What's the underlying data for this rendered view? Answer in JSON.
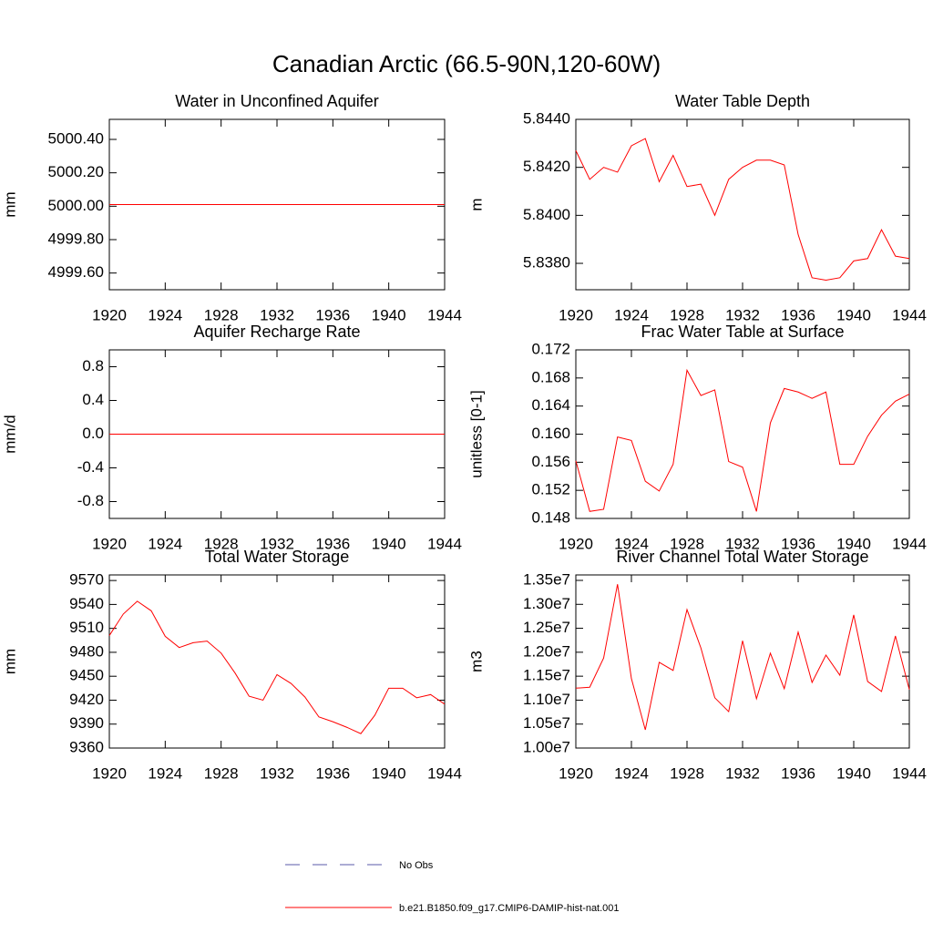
{
  "title": "Canadian Arctic (66.5-90N,120-60W)",
  "legend": [
    {
      "name": "No Obs",
      "color": "#5a5aa8",
      "dash": true
    },
    {
      "name": "b.e21.B1850.f09_g17.CMIP6-DAMIP-hist-nat.001",
      "color": "#ff0000",
      "dash": false
    }
  ],
  "chart_data": [
    {
      "type": "line",
      "title": "Water in Unconfined Aquifer",
      "y_label": "mm",
      "x": [
        1920,
        1921,
        1922,
        1923,
        1924,
        1925,
        1926,
        1927,
        1928,
        1929,
        1930,
        1931,
        1932,
        1933,
        1934,
        1935,
        1936,
        1937,
        1938,
        1939,
        1940,
        1941,
        1942,
        1943,
        1944
      ],
      "xlim": [
        1920,
        1944
      ],
      "xticks": [
        1920,
        1924,
        1928,
        1932,
        1936,
        1940,
        1944
      ],
      "ylim": [
        4999.5,
        5000.52
      ],
      "yticks": [
        {
          "value": 4999.6,
          "label": "4999.60"
        },
        {
          "value": 4999.8,
          "label": "4999.80"
        },
        {
          "value": 5000,
          "label": "5000.00"
        },
        {
          "value": 5000.2,
          "label": "5000.20"
        },
        {
          "value": 5000.4,
          "label": "5000.40"
        }
      ],
      "series": [
        {
          "color": "#ff0000",
          "values": [
            5000.01,
            5000.01,
            5000.01,
            5000.01,
            5000.01,
            5000.01,
            5000.01,
            5000.01,
            5000.01,
            5000.01,
            5000.01,
            5000.01,
            5000.01,
            5000.01,
            5000.01,
            5000.01,
            5000.01,
            5000.01,
            5000.01,
            5000.01,
            5000.01,
            5000.01,
            5000.01,
            5000.01,
            5000.01
          ]
        }
      ]
    },
    {
      "type": "line",
      "title": "Water Table Depth",
      "y_label": "m",
      "x": [
        1920,
        1921,
        1922,
        1923,
        1924,
        1925,
        1926,
        1927,
        1928,
        1929,
        1930,
        1931,
        1932,
        1933,
        1934,
        1935,
        1936,
        1937,
        1938,
        1939,
        1940,
        1941,
        1942,
        1943,
        1944
      ],
      "xlim": [
        1920,
        1944
      ],
      "xticks": [
        1920,
        1924,
        1928,
        1932,
        1936,
        1940,
        1944
      ],
      "ylim": [
        5.8369,
        5.844
      ],
      "yticks": [
        {
          "value": 5.838,
          "label": "5.8380"
        },
        {
          "value": 5.84,
          "label": "5.8400"
        },
        {
          "value": 5.842,
          "label": "5.8420"
        },
        {
          "value": 5.844,
          "label": "5.8440"
        }
      ],
      "series": [
        {
          "color": "#ff0000",
          "values": [
            5.8427,
            5.8415,
            5.842,
            5.8418,
            5.8429,
            5.8432,
            5.8414,
            5.8425,
            5.8412,
            5.8413,
            5.84,
            5.8415,
            5.842,
            5.8423,
            5.8423,
            5.8421,
            5.8392,
            5.8374,
            5.8373,
            5.8374,
            5.8381,
            5.8382,
            5.8394,
            5.8383,
            5.8382
          ]
        }
      ]
    },
    {
      "type": "line",
      "title": "Aquifer Recharge Rate",
      "y_label": "mm/d",
      "x": [
        1920,
        1921,
        1922,
        1923,
        1924,
        1925,
        1926,
        1927,
        1928,
        1929,
        1930,
        1931,
        1932,
        1933,
        1934,
        1935,
        1936,
        1937,
        1938,
        1939,
        1940,
        1941,
        1942,
        1943,
        1944
      ],
      "xlim": [
        1920,
        1944
      ],
      "xticks": [
        1920,
        1924,
        1928,
        1932,
        1936,
        1940,
        1944
      ],
      "ylim": [
        -1,
        1
      ],
      "yticks": [
        -0.8,
        -0.4,
        {
          "value": 0,
          "label": "0.0"
        },
        0.4,
        0.8
      ],
      "series": [
        {
          "color": "#ff0000",
          "values": [
            0,
            0,
            0,
            0,
            0,
            0,
            0,
            0,
            0,
            0,
            0,
            0,
            0,
            0,
            0,
            0,
            0,
            0,
            0,
            0,
            0,
            0,
            0,
            0,
            0
          ]
        }
      ]
    },
    {
      "type": "line",
      "title": "Frac Water Table at Surface",
      "y_label": "unitless [0-1]",
      "x": [
        1920,
        1921,
        1922,
        1923,
        1924,
        1925,
        1926,
        1927,
        1928,
        1929,
        1930,
        1931,
        1932,
        1933,
        1934,
        1935,
        1936,
        1937,
        1938,
        1939,
        1940,
        1941,
        1942,
        1943,
        1944
      ],
      "xlim": [
        1920,
        1944
      ],
      "xticks": [
        1920,
        1924,
        1928,
        1932,
        1936,
        1940,
        1944
      ],
      "ylim": [
        0.148,
        0.172
      ],
      "yticks": [
        0.148,
        0.152,
        0.156,
        {
          "value": 0.16,
          "label": "0.160"
        },
        0.164,
        0.168,
        0.172
      ],
      "series": [
        {
          "color": "#ff0000",
          "values": [
            0.1562,
            0.149,
            0.1493,
            0.1596,
            0.1591,
            0.1533,
            0.1519,
            0.1557,
            0.1691,
            0.1655,
            0.1663,
            0.1561,
            0.1553,
            0.149,
            0.1616,
            0.1665,
            0.166,
            0.1651,
            0.166,
            0.1557,
            0.1557,
            0.1597,
            0.1627,
            0.1647,
            0.1657
          ]
        }
      ]
    },
    {
      "type": "line",
      "title": "Total Water Storage",
      "y_label": "mm",
      "x": [
        1920,
        1921,
        1922,
        1923,
        1924,
        1925,
        1926,
        1927,
        1928,
        1929,
        1930,
        1931,
        1932,
        1933,
        1934,
        1935,
        1936,
        1937,
        1938,
        1939,
        1940,
        1941,
        1942,
        1943,
        1944
      ],
      "xlim": [
        1920,
        1944
      ],
      "xticks": [
        1920,
        1924,
        1928,
        1932,
        1936,
        1940,
        1944
      ],
      "ylim": [
        9360,
        9577
      ],
      "yticks": [
        9360,
        9390,
        9420,
        9450,
        9480,
        9510,
        9540,
        9570
      ],
      "series": [
        {
          "color": "#ff0000",
          "values": [
            9501,
            9528,
            9544,
            9532,
            9500,
            9486,
            9492,
            9494,
            9479,
            9454,
            9425,
            9420,
            9452,
            9441,
            9424,
            9399,
            9393,
            9386,
            9378,
            9401,
            9435,
            9435,
            9423,
            9427,
            9415
          ]
        }
      ]
    },
    {
      "type": "line",
      "title": "River Channel Total Water Storage",
      "y_label": "m3",
      "x": [
        1920,
        1921,
        1922,
        1923,
        1924,
        1925,
        1926,
        1927,
        1928,
        1929,
        1930,
        1931,
        1932,
        1933,
        1934,
        1935,
        1936,
        1937,
        1938,
        1939,
        1940,
        1941,
        1942,
        1943,
        1944
      ],
      "xlim": [
        1920,
        1944
      ],
      "xticks": [
        1920,
        1924,
        1928,
        1932,
        1936,
        1940,
        1944
      ],
      "ylim": [
        10000000,
        13614000
      ],
      "yticks": [
        {
          "value": 10000000,
          "label": "1.00e7"
        },
        {
          "value": 10500000,
          "label": "1.05e7"
        },
        {
          "value": 11000000,
          "label": "1.10e7"
        },
        {
          "value": 11500000,
          "label": "1.15e7"
        },
        {
          "value": 12000000,
          "label": "1.20e7"
        },
        {
          "value": 12500000,
          "label": "1.25e7"
        },
        {
          "value": 13000000,
          "label": "1.30e7"
        },
        {
          "value": 13500000,
          "label": "1.35e7"
        }
      ],
      "series": [
        {
          "color": "#ff0000",
          "values": [
            11250000,
            11270000,
            11880000,
            13420000,
            11450000,
            10380000,
            11790000,
            11620000,
            12890000,
            12090000,
            11050000,
            10760000,
            12240000,
            11030000,
            11980000,
            11240000,
            12420000,
            11370000,
            11940000,
            11520000,
            12780000,
            11390000,
            11180000,
            12340000,
            11220000
          ]
        }
      ]
    }
  ]
}
